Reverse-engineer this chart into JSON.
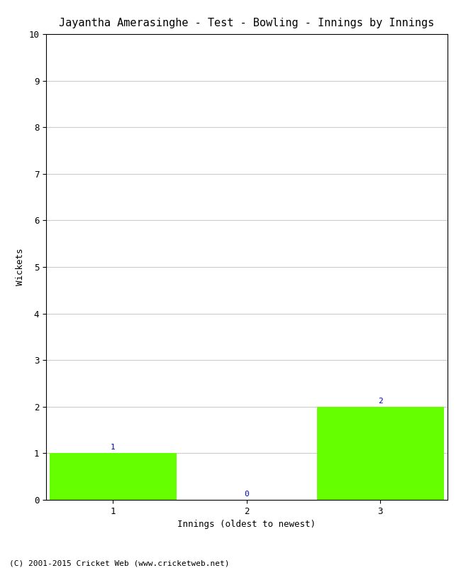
{
  "title": "Jayantha Amerasinghe - Test - Bowling - Innings by Innings",
  "xlabel": "Innings (oldest to newest)",
  "ylabel": "Wickets",
  "categories": [
    "1",
    "2",
    "3"
  ],
  "values": [
    1,
    0,
    2
  ],
  "bar_color": "#66ff00",
  "ylim": [
    0,
    10
  ],
  "yticks": [
    0,
    1,
    2,
    3,
    4,
    5,
    6,
    7,
    8,
    9,
    10
  ],
  "background_color": "#ffffff",
  "grid_color": "#cccccc",
  "annotation_color": "#0000cc",
  "footer": "(C) 2001-2015 Cricket Web (www.cricketweb.net)",
  "title_fontsize": 11,
  "axis_label_fontsize": 9,
  "tick_fontsize": 9,
  "annotation_fontsize": 8,
  "footer_fontsize": 8
}
